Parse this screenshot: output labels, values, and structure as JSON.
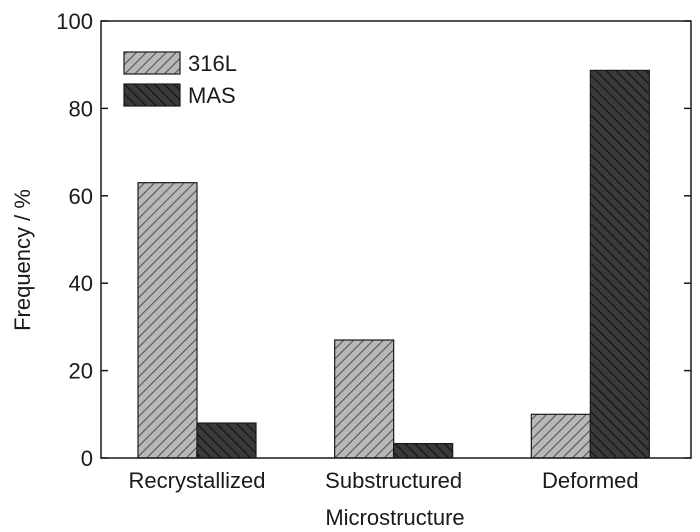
{
  "chart_data": {
    "type": "bar",
    "categories": [
      "Recrystallized",
      "Substructured",
      "Deformed"
    ],
    "series": [
      {
        "name": "316L",
        "values": [
          63,
          27,
          10
        ],
        "fill": "#b8b8b8",
        "hatch": "#555555"
      },
      {
        "name": "MAS",
        "values": [
          8,
          3.3,
          88.7
        ],
        "fill": "#3a3a3a",
        "hatch": "#111111"
      }
    ],
    "xlabel": "Microstructure",
    "ylabel": "Frequency / %",
    "ylim": [
      0,
      100
    ],
    "yticks": [
      0,
      20,
      40,
      60,
      80,
      100
    ],
    "grid": false,
    "legend": "top-left"
  }
}
